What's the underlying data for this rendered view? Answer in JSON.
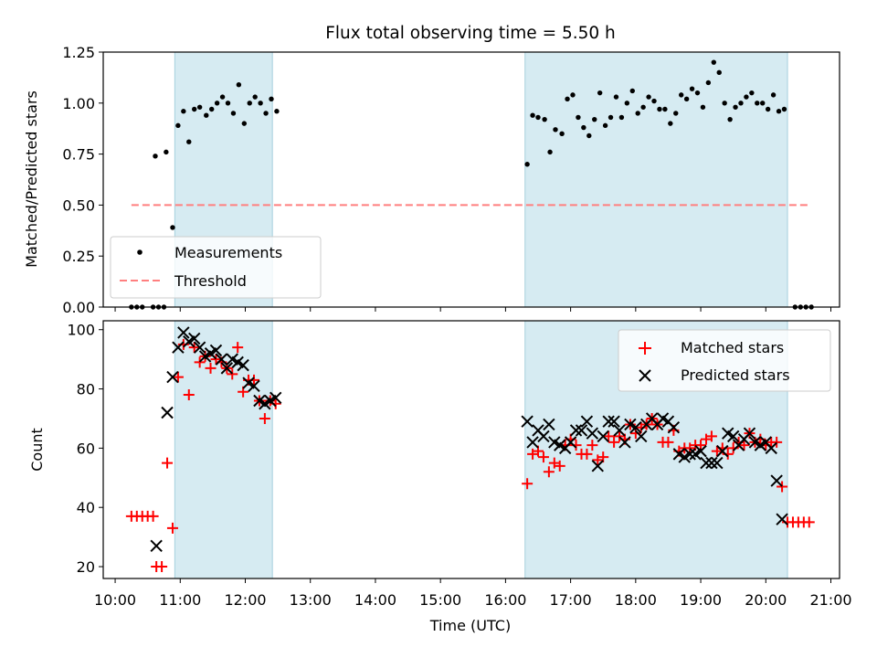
{
  "chart_data": [
    {
      "type": "scatter",
      "title": "Flux total observing time = 5.50 h",
      "ylabel": "Matched/Predicted stars",
      "xlabel": "",
      "xlim": [
        "10:00",
        "21:00"
      ],
      "ylim": [
        0,
        1.25
      ],
      "y_ticks": [
        "0.00",
        "0.25",
        "0.50",
        "0.75",
        "1.00",
        "1.25"
      ],
      "legend": {
        "position": "lower-left",
        "entries": [
          "Measurements",
          "Threshold"
        ]
      },
      "shaded_intervals": [
        [
          "10:55",
          "12:25"
        ],
        [
          "16:18",
          "20:20"
        ]
      ],
      "threshold": {
        "value": 0.5,
        "x_range": [
          "10:15",
          "20:40"
        ],
        "color": "#ff7f7f"
      },
      "measurements_color": "#000000",
      "series": [
        {
          "name": "Measurements",
          "points": [
            [
              "10:15",
              0.0
            ],
            [
              "10:20",
              0.0
            ],
            [
              "10:25",
              0.0
            ],
            [
              "10:35",
              0.0
            ],
            [
              "10:40",
              0.0
            ],
            [
              "10:45",
              0.0
            ],
            [
              "10:37",
              0.74
            ],
            [
              "10:47",
              0.76
            ],
            [
              "10:53",
              0.39
            ],
            [
              "10:58",
              0.89
            ],
            [
              "11:03",
              0.96
            ],
            [
              "11:08",
              0.81
            ],
            [
              "11:13",
              0.97
            ],
            [
              "11:18",
              0.98
            ],
            [
              "11:24",
              0.94
            ],
            [
              "11:29",
              0.97
            ],
            [
              "11:34",
              1.0
            ],
            [
              "11:39",
              1.03
            ],
            [
              "11:44",
              1.0
            ],
            [
              "11:49",
              0.95
            ],
            [
              "11:54",
              1.09
            ],
            [
              "11:59",
              0.9
            ],
            [
              "12:04",
              1.0
            ],
            [
              "12:09",
              1.03
            ],
            [
              "12:14",
              1.0
            ],
            [
              "12:19",
              0.95
            ],
            [
              "12:24",
              1.02
            ],
            [
              "12:29",
              0.96
            ],
            [
              "16:20",
              0.7
            ],
            [
              "16:25",
              0.94
            ],
            [
              "16:30",
              0.93
            ],
            [
              "16:36",
              0.92
            ],
            [
              "16:41",
              0.76
            ],
            [
              "16:46",
              0.87
            ],
            [
              "16:52",
              0.85
            ],
            [
              "16:57",
              1.02
            ],
            [
              "17:02",
              1.04
            ],
            [
              "17:07",
              0.93
            ],
            [
              "17:12",
              0.88
            ],
            [
              "17:17",
              0.84
            ],
            [
              "17:22",
              0.92
            ],
            [
              "17:27",
              1.05
            ],
            [
              "17:32",
              0.89
            ],
            [
              "17:37",
              0.93
            ],
            [
              "17:42",
              1.03
            ],
            [
              "17:47",
              0.93
            ],
            [
              "17:52",
              1.0
            ],
            [
              "17:57",
              1.06
            ],
            [
              "18:02",
              0.95
            ],
            [
              "18:07",
              0.98
            ],
            [
              "18:12",
              1.03
            ],
            [
              "18:17",
              1.01
            ],
            [
              "18:22",
              0.97
            ],
            [
              "18:27",
              0.97
            ],
            [
              "18:32",
              0.9
            ],
            [
              "18:37",
              0.95
            ],
            [
              "18:42",
              1.04
            ],
            [
              "18:47",
              1.02
            ],
            [
              "18:52",
              1.07
            ],
            [
              "18:57",
              1.05
            ],
            [
              "19:02",
              0.98
            ],
            [
              "19:07",
              1.1
            ],
            [
              "19:12",
              1.2
            ],
            [
              "19:17",
              1.15
            ],
            [
              "19:22",
              1.0
            ],
            [
              "19:27",
              0.92
            ],
            [
              "19:32",
              0.98
            ],
            [
              "19:37",
              1.0
            ],
            [
              "19:42",
              1.03
            ],
            [
              "19:47",
              1.05
            ],
            [
              "19:52",
              1.0
            ],
            [
              "19:57",
              1.0
            ],
            [
              "20:02",
              0.97
            ],
            [
              "20:07",
              1.04
            ],
            [
              "20:12",
              0.96
            ],
            [
              "20:17",
              0.97
            ],
            [
              "20:27",
              0.0
            ],
            [
              "20:32",
              0.0
            ],
            [
              "20:37",
              0.0
            ],
            [
              "20:42",
              0.0
            ]
          ]
        },
        {
          "name": "Threshold",
          "values": [
            0.5
          ]
        }
      ]
    },
    {
      "type": "scatter",
      "title": "",
      "ylabel": "Count",
      "xlabel": "Time (UTC)",
      "xlim": [
        "10:00",
        "21:00"
      ],
      "ylim": [
        16,
        103
      ],
      "y_ticks": [
        "20",
        "40",
        "60",
        "80",
        "100"
      ],
      "x_ticks": [
        "10:00",
        "11:00",
        "12:00",
        "13:00",
        "14:00",
        "15:00",
        "16:00",
        "17:00",
        "18:00",
        "19:00",
        "20:00",
        "21:00"
      ],
      "legend": {
        "position": "upper-right",
        "entries": [
          "Matched stars",
          "Predicted stars"
        ]
      },
      "shaded_intervals": [
        [
          "10:55",
          "12:25"
        ],
        [
          "16:18",
          "20:20"
        ]
      ],
      "matched_color": "#ff0000",
      "predicted_color": "#000000",
      "series": [
        {
          "name": "Matched stars",
          "points": [
            [
              "10:15",
              37
            ],
            [
              "10:20",
              37
            ],
            [
              "10:25",
              37
            ],
            [
              "10:30",
              37
            ],
            [
              "10:35",
              37
            ],
            [
              "10:38",
              20
            ],
            [
              "10:43",
              20
            ],
            [
              "10:48",
              55
            ],
            [
              "10:53",
              33
            ],
            [
              "10:58",
              84
            ],
            [
              "11:03",
              95
            ],
            [
              "11:08",
              78
            ],
            [
              "11:13",
              94
            ],
            [
              "11:18",
              89
            ],
            [
              "11:23",
              91
            ],
            [
              "11:28",
              87
            ],
            [
              "11:33",
              90
            ],
            [
              "11:38",
              89
            ],
            [
              "11:43",
              87
            ],
            [
              "11:48",
              85
            ],
            [
              "11:53",
              94
            ],
            [
              "11:58",
              79
            ],
            [
              "12:03",
              83
            ],
            [
              "12:08",
              83
            ],
            [
              "12:13",
              76
            ],
            [
              "12:18",
              70
            ],
            [
              "12:23",
              76
            ],
            [
              "12:28",
              75
            ],
            [
              "16:20",
              48
            ],
            [
              "16:25",
              58
            ],
            [
              "16:30",
              59
            ],
            [
              "16:35",
              57
            ],
            [
              "16:40",
              52
            ],
            [
              "16:45",
              55
            ],
            [
              "16:50",
              54
            ],
            [
              "16:55",
              61
            ],
            [
              "17:00",
              63
            ],
            [
              "17:05",
              61
            ],
            [
              "17:10",
              58
            ],
            [
              "17:15",
              58
            ],
            [
              "17:20",
              61
            ],
            [
              "17:25",
              56
            ],
            [
              "17:30",
              57
            ],
            [
              "17:35",
              64
            ],
            [
              "17:40",
              62
            ],
            [
              "17:45",
              64
            ],
            [
              "17:50",
              63
            ],
            [
              "17:55",
              68
            ],
            [
              "18:00",
              65
            ],
            [
              "18:05",
              67
            ],
            [
              "18:10",
              68
            ],
            [
              "18:15",
              70
            ],
            [
              "18:20",
              68
            ],
            [
              "18:25",
              62
            ],
            [
              "18:30",
              62
            ],
            [
              "18:35",
              66
            ],
            [
              "18:40",
              59
            ],
            [
              "18:45",
              60
            ],
            [
              "18:50",
              60
            ],
            [
              "18:55",
              61
            ],
            [
              "19:00",
              61
            ],
            [
              "19:05",
              63
            ],
            [
              "19:10",
              64
            ],
            [
              "19:15",
              59
            ],
            [
              "19:20",
              60
            ],
            [
              "19:25",
              58
            ],
            [
              "19:30",
              60
            ],
            [
              "19:35",
              62
            ],
            [
              "19:40",
              61
            ],
            [
              "19:45",
              65
            ],
            [
              "19:50",
              62
            ],
            [
              "19:55",
              63
            ],
            [
              "20:00",
              61
            ],
            [
              "20:05",
              62
            ],
            [
              "20:10",
              62
            ],
            [
              "20:15",
              47
            ],
            [
              "20:20",
              35
            ],
            [
              "20:25",
              35
            ],
            [
              "20:30",
              35
            ],
            [
              "20:35",
              35
            ],
            [
              "20:40",
              35
            ]
          ]
        },
        {
          "name": "Predicted stars",
          "points": [
            [
              "10:38",
              27
            ],
            [
              "10:48",
              72
            ],
            [
              "10:53",
              84
            ],
            [
              "10:58",
              94
            ],
            [
              "11:03",
              99
            ],
            [
              "11:08",
              96
            ],
            [
              "11:13",
              97
            ],
            [
              "11:18",
              94
            ],
            [
              "11:23",
              91
            ],
            [
              "11:28",
              92
            ],
            [
              "11:33",
              93
            ],
            [
              "11:38",
              90
            ],
            [
              "11:43",
              87
            ],
            [
              "11:48",
              90
            ],
            [
              "11:53",
              89
            ],
            [
              "11:58",
              88
            ],
            [
              "12:03",
              82
            ],
            [
              "12:08",
              81
            ],
            [
              "12:13",
              76
            ],
            [
              "12:18",
              75
            ],
            [
              "12:23",
              76
            ],
            [
              "12:28",
              77
            ],
            [
              "16:20",
              69
            ],
            [
              "16:25",
              62
            ],
            [
              "16:30",
              66
            ],
            [
              "16:35",
              64
            ],
            [
              "16:40",
              68
            ],
            [
              "16:45",
              62
            ],
            [
              "16:50",
              61
            ],
            [
              "16:55",
              60
            ],
            [
              "17:00",
              62
            ],
            [
              "17:05",
              66
            ],
            [
              "17:10",
              66
            ],
            [
              "17:15",
              69
            ],
            [
              "17:20",
              65
            ],
            [
              "17:25",
              54
            ],
            [
              "17:30",
              64
            ],
            [
              "17:35",
              69
            ],
            [
              "17:40",
              69
            ],
            [
              "17:45",
              66
            ],
            [
              "17:50",
              62
            ],
            [
              "17:55",
              68
            ],
            [
              "18:00",
              67
            ],
            [
              "18:05",
              64
            ],
            [
              "18:10",
              68
            ],
            [
              "18:15",
              70
            ],
            [
              "18:20",
              68
            ],
            [
              "18:25",
              70
            ],
            [
              "18:30",
              69
            ],
            [
              "18:35",
              67
            ],
            [
              "18:40",
              58
            ],
            [
              "18:45",
              57
            ],
            [
              "18:50",
              58
            ],
            [
              "18:55",
              58
            ],
            [
              "19:00",
              59
            ],
            [
              "19:05",
              55
            ],
            [
              "19:10",
              55
            ],
            [
              "19:15",
              55
            ],
            [
              "19:20",
              59
            ],
            [
              "19:25",
              65
            ],
            [
              "19:30",
              64
            ],
            [
              "19:35",
              61
            ],
            [
              "19:40",
              63
            ],
            [
              "19:45",
              65
            ],
            [
              "19:50",
              62
            ],
            [
              "19:55",
              61
            ],
            [
              "20:00",
              62
            ],
            [
              "20:05",
              60
            ],
            [
              "20:10",
              49
            ],
            [
              "20:15",
              36
            ]
          ]
        }
      ]
    }
  ]
}
